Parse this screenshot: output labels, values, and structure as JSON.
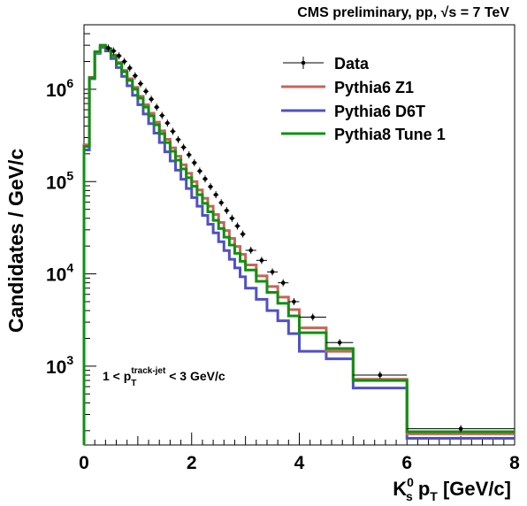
{
  "chart_data": {
    "type": "line",
    "title": "CMS preliminary, pp, √s = 7 TeV",
    "xlabel": "K⁰ₛ pₜ [GeV/c]",
    "xlabel_parts": {
      "main": "K",
      "sup": "0",
      "sub": "s",
      "mid": " p",
      "sub2": "T",
      "tail": " [GeV/c]"
    },
    "ylabel": "Candidates / GeV/c",
    "annotation": "1 < p_T^track-jet < 3 GeV/c",
    "annotation_parts": {
      "pre": "1 < p",
      "sub": "T",
      "sup": "track-jet",
      "post": " < 3 GeV/c"
    },
    "xlim": [
      0,
      8
    ],
    "ylim": [
      140,
      5000000
    ],
    "y_scale": "log",
    "x_ticks": [
      "0",
      "2",
      "4",
      "6",
      "8"
    ],
    "y_ticks": [
      {
        "base": "10",
        "exp": "3",
        "value": 1000
      },
      {
        "base": "10",
        "exp": "4",
        "value": 10000
      },
      {
        "base": "10",
        "exp": "5",
        "value": 100000
      },
      {
        "base": "10",
        "exp": "6",
        "value": 1000000
      }
    ],
    "legend_position": "top-right",
    "bin_edges": [
      0,
      0.1,
      0.2,
      0.3,
      0.4,
      0.5,
      0.6,
      0.7,
      0.8,
      0.9,
      1.0,
      1.1,
      1.2,
      1.3,
      1.4,
      1.5,
      1.6,
      1.7,
      1.8,
      1.9,
      2.0,
      2.1,
      2.2,
      2.3,
      2.4,
      2.5,
      2.6,
      2.7,
      2.8,
      2.9,
      3.0,
      3.2,
      3.4,
      3.6,
      3.8,
      4.0,
      4.5,
      5.0,
      6.0,
      8.0
    ],
    "series": [
      {
        "name": "Data",
        "style": "points",
        "color": "#000000",
        "values": [
          null,
          null,
          null,
          null,
          2800000,
          2600000,
          2300000,
          2000000,
          1700000,
          1400000,
          1150000,
          950000,
          780000,
          640000,
          520000,
          430000,
          350000,
          285000,
          235000,
          195000,
          160000,
          130000,
          107000,
          88000,
          72000,
          59000,
          48500,
          40000,
          33000,
          27000,
          18000,
          14000,
          10500,
          8000,
          5000,
          3400,
          1800,
          800,
          210
        ]
      },
      {
        "name": "Pythia6 Z1",
        "style": "step",
        "color": "#c8645a",
        "values": [
          250000,
          1350000,
          2500000,
          2950000,
          2750000,
          2350000,
          1950000,
          1600000,
          1300000,
          1050000,
          840000,
          680000,
          550000,
          440000,
          355000,
          287000,
          232000,
          188000,
          152000,
          123000,
          100000,
          81000,
          66000,
          54000,
          44000,
          36000,
          29500,
          24200,
          19800,
          16300,
          12500,
          9500,
          7300,
          5600,
          4100,
          2600,
          1450,
          720,
          185
        ]
      },
      {
        "name": "Pythia6 D6T",
        "style": "step",
        "color": "#5050c8",
        "values": [
          220000,
          1300000,
          2450000,
          2850000,
          2600000,
          2150000,
          1720000,
          1380000,
          1090000,
          860000,
          680000,
          540000,
          425000,
          335000,
          265000,
          210000,
          167000,
          133000,
          106000,
          84000,
          67000,
          54000,
          43000,
          34500,
          27800,
          22300,
          17900,
          14400,
          11600,
          9300,
          7000,
          5300,
          4000,
          3100,
          2250,
          1450,
          1200,
          580,
          165
        ]
      },
      {
        "name": "Pythia8 Tune 1",
        "style": "step",
        "color": "#109010",
        "values": [
          240000,
          1330000,
          2550000,
          3000000,
          2750000,
          2300000,
          1900000,
          1550000,
          1250000,
          1000000,
          800000,
          640000,
          515000,
          412000,
          330000,
          265000,
          213000,
          171000,
          137000,
          110000,
          89000,
          72000,
          58000,
          47000,
          38000,
          31000,
          25000,
          20500,
          16700,
          13700,
          11000,
          8300,
          6300,
          4800,
          3500,
          2300,
          1550,
          700,
          195
        ]
      }
    ]
  }
}
